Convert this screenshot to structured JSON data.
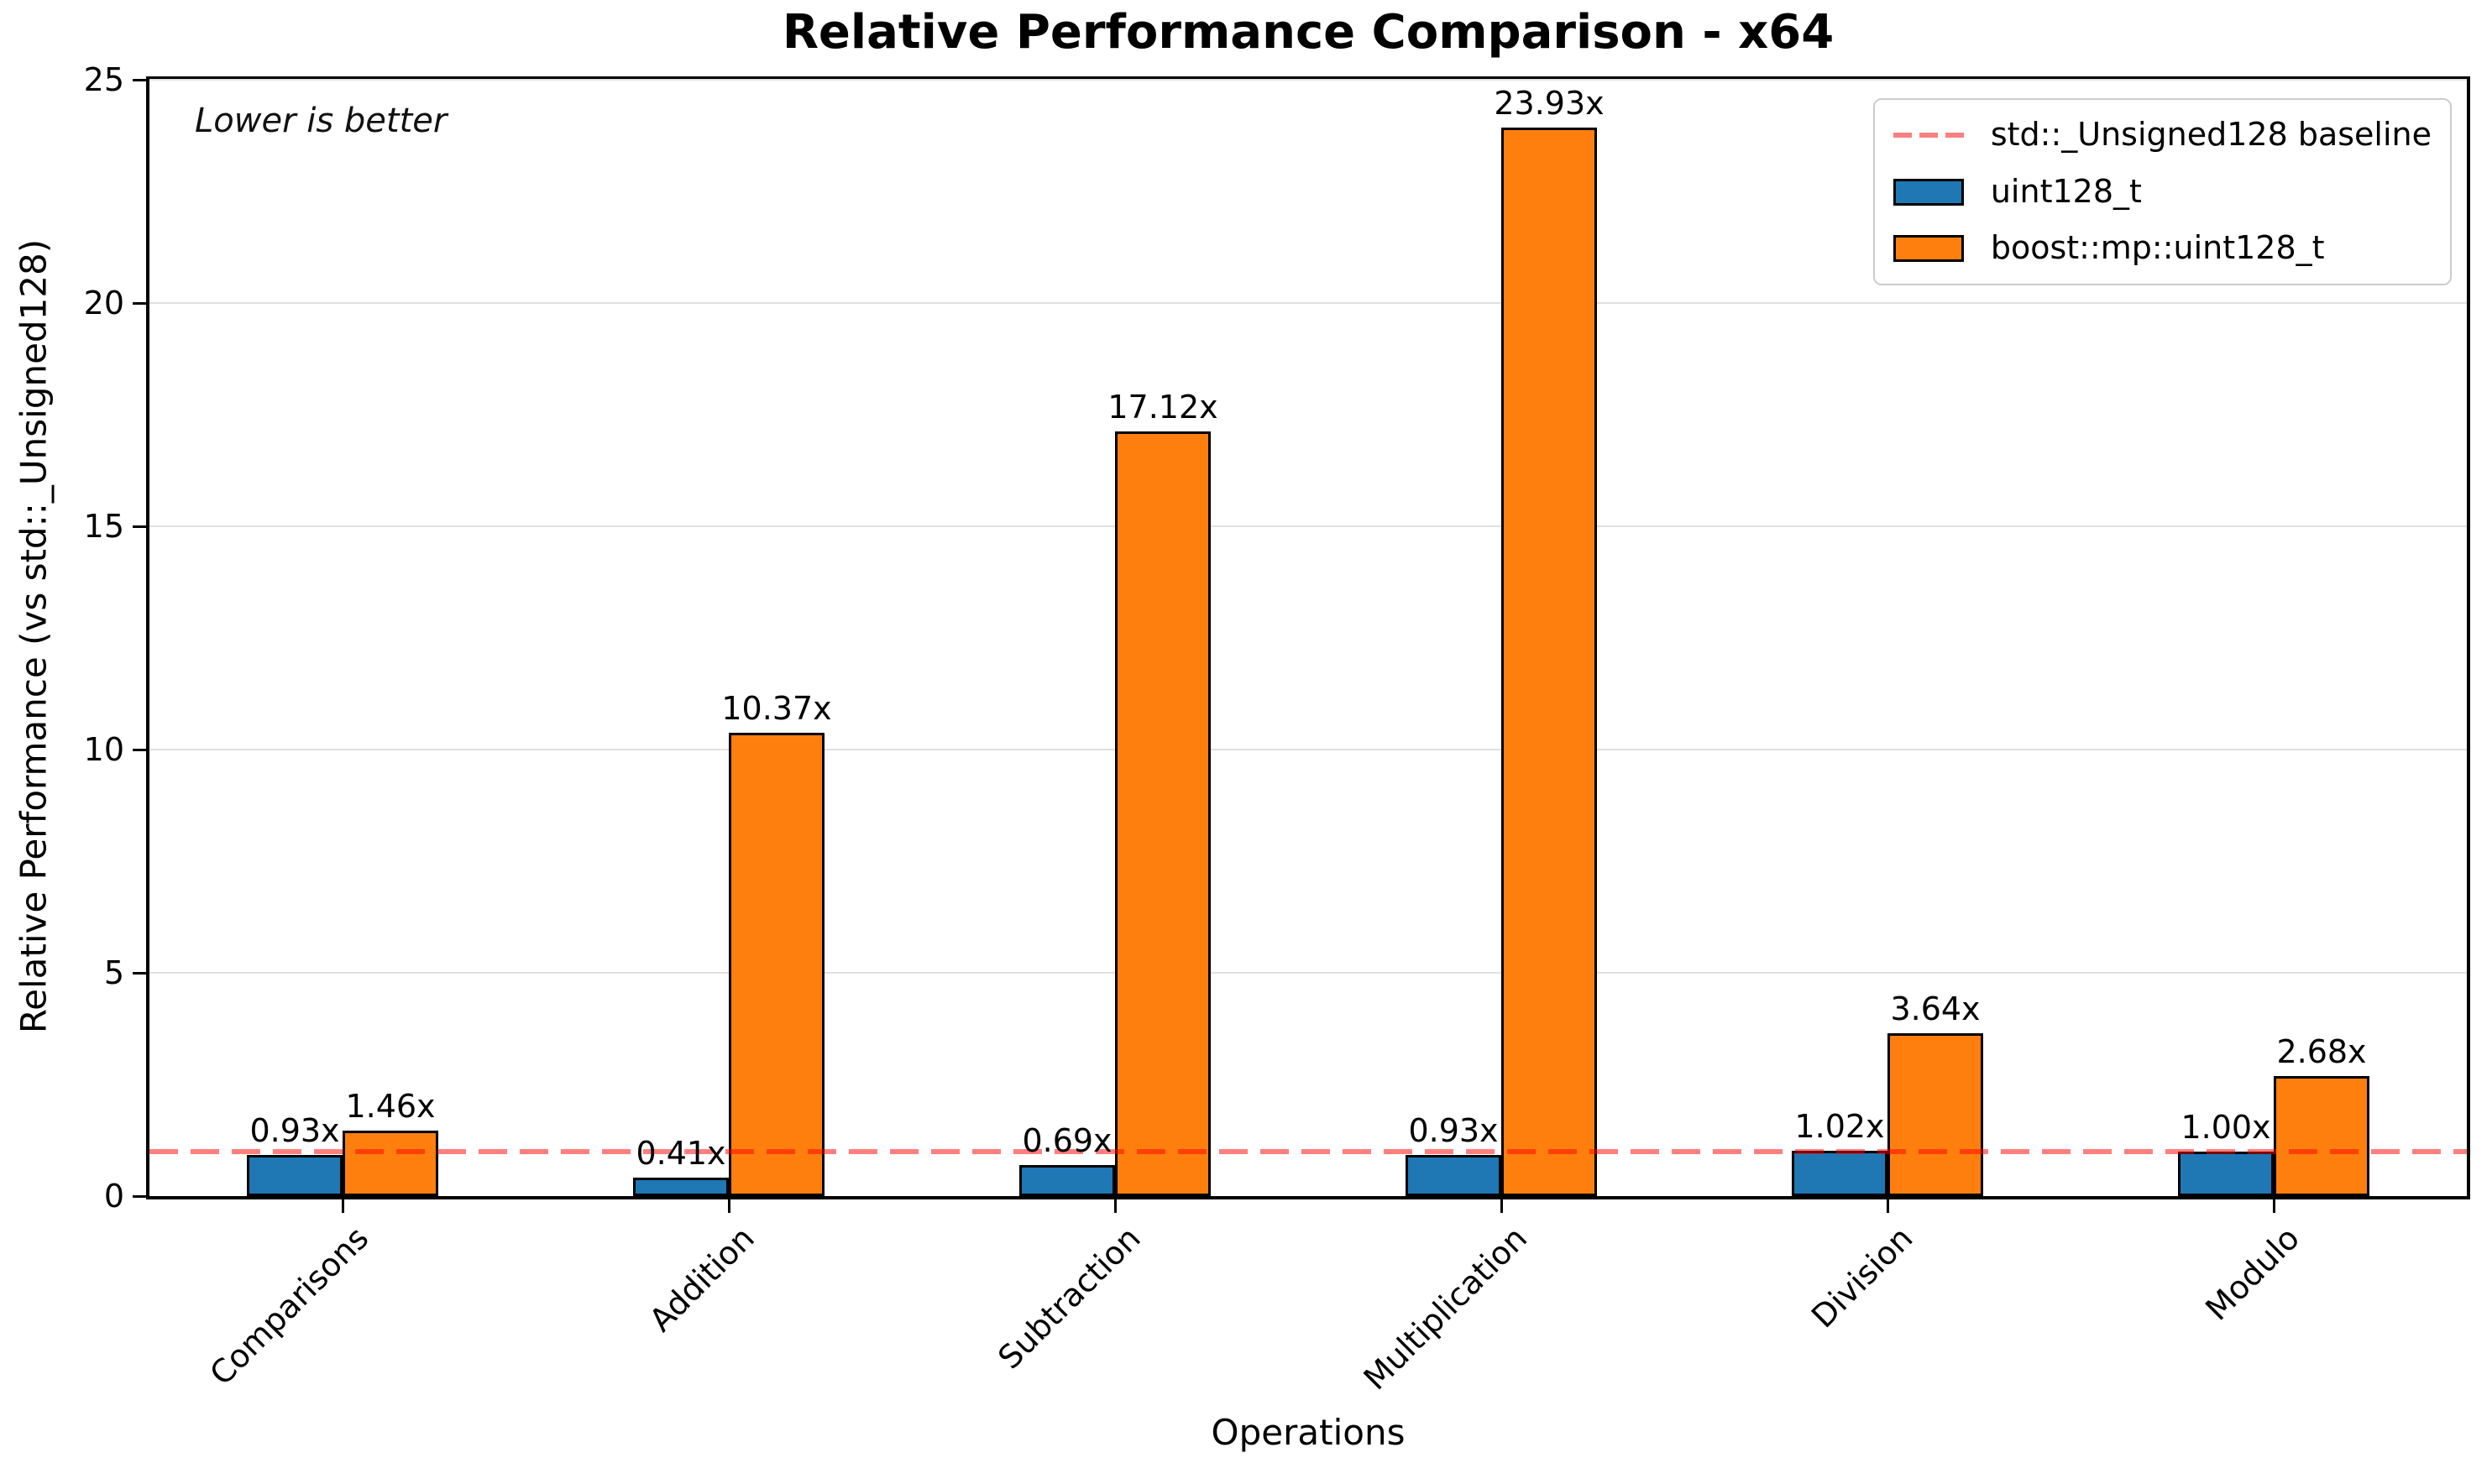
{
  "chart_data": {
    "type": "bar",
    "title": "Relative Performance Comparison - x64",
    "xlabel": "Operations",
    "ylabel": "Relative Performance (vs std::_Unsigned128)",
    "annotation": "Lower is better",
    "categories": [
      "Comparisons",
      "Addition",
      "Subtraction",
      "Multiplication",
      "Division",
      "Modulo"
    ],
    "series": [
      {
        "name": "uint128_t",
        "color": "#1f77b4",
        "values": [
          0.93,
          0.41,
          0.69,
          0.93,
          1.02,
          1.0
        ]
      },
      {
        "name": "boost::mp::uint128_t",
        "color": "#ff7f0e",
        "values": [
          1.46,
          10.37,
          17.12,
          23.93,
          3.64,
          2.68
        ]
      }
    ],
    "value_labels": [
      [
        "0.93x",
        "1.46x"
      ],
      [
        "0.41x",
        "10.37x"
      ],
      [
        "0.69x",
        "17.12x"
      ],
      [
        "0.93x",
        "23.93x"
      ],
      [
        "1.02x",
        "3.64x"
      ],
      [
        "1.00x",
        "2.68x"
      ]
    ],
    "baseline": {
      "value": 1.0,
      "label": "std::_Unsigned128 baseline",
      "color": "#ff8080"
    },
    "ylim": [
      0,
      25
    ],
    "yticks": [
      0,
      5,
      10,
      15,
      20,
      25
    ],
    "grid": "horizontal",
    "legend_position": "upper right",
    "bar_edge_color": "#000000"
  }
}
